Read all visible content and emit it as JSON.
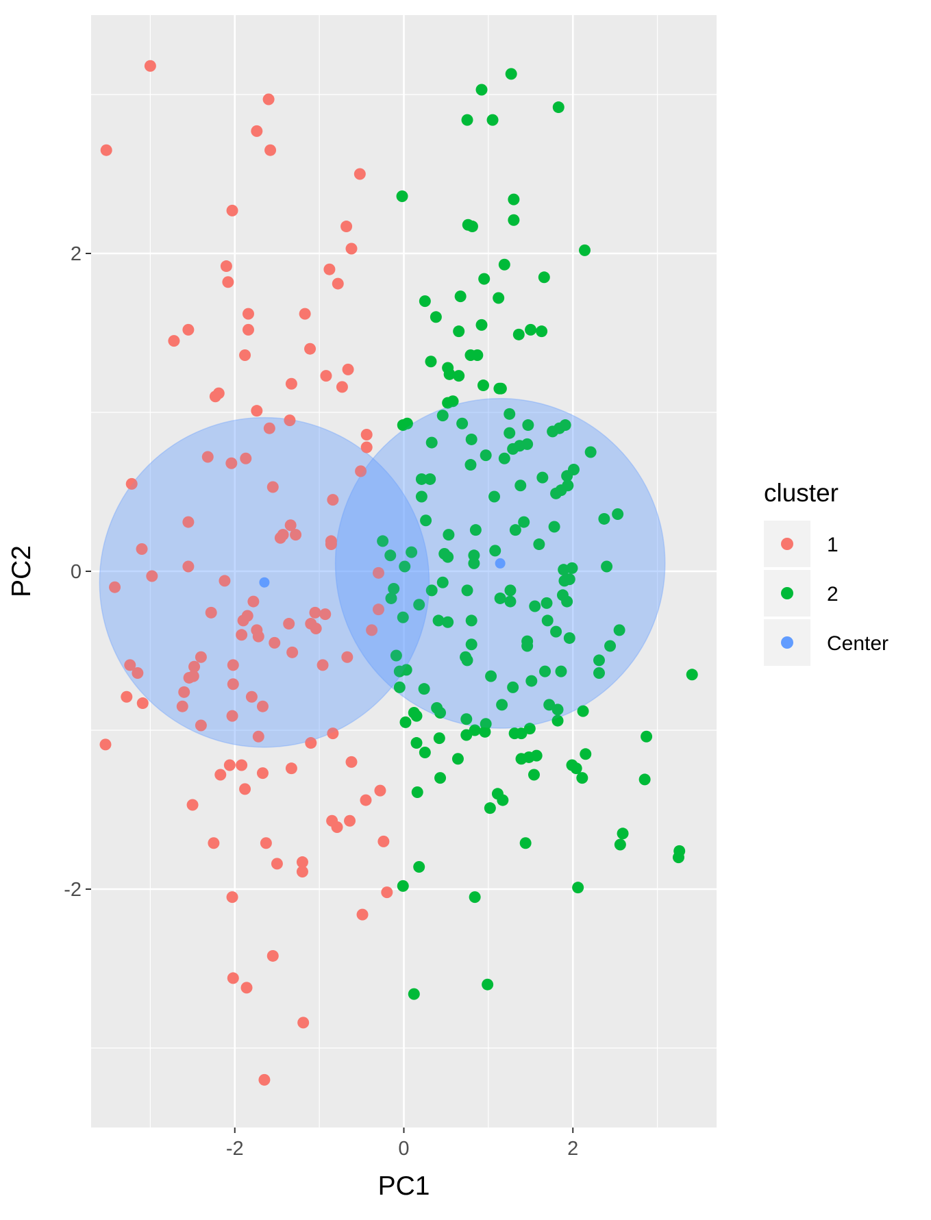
{
  "chart_data": {
    "type": "scatter",
    "title": "",
    "xlabel": "PC1",
    "ylabel": "PC2",
    "xlim": [
      -3.7,
      3.7
    ],
    "ylim": [
      -3.5,
      3.5
    ],
    "x_ticks": [
      -2,
      0,
      2
    ],
    "x_tick_labels": [
      "-2",
      "0",
      "2"
    ],
    "y_ticks": [
      -2,
      0,
      2
    ],
    "y_tick_labels": [
      "-2",
      "0",
      "2"
    ],
    "grid": true,
    "legend": {
      "title": "cluster",
      "position": "right",
      "entries": [
        {
          "label": "1",
          "color": "#F8766D"
        },
        {
          "label": "2",
          "color": "#00BA38"
        },
        {
          "label": "Center",
          "color": "#619CFF"
        }
      ]
    },
    "series": [
      {
        "name": "1",
        "color": "#F8766D",
        "points": [
          [
            -3.0,
            3.18
          ],
          [
            -1.6,
            2.97
          ],
          [
            -3.52,
            2.65
          ],
          [
            -1.74,
            2.77
          ],
          [
            -1.58,
            2.65
          ],
          [
            -0.52,
            2.5
          ],
          [
            -2.03,
            2.27
          ],
          [
            -0.68,
            2.17
          ],
          [
            -0.62,
            2.03
          ],
          [
            -2.1,
            1.92
          ],
          [
            -2.08,
            1.82
          ],
          [
            -0.88,
            1.9
          ],
          [
            -0.78,
            1.81
          ],
          [
            -1.84,
            1.62
          ],
          [
            -1.84,
            1.52
          ],
          [
            -1.17,
            1.62
          ],
          [
            -2.72,
            1.45
          ],
          [
            -2.55,
            1.52
          ],
          [
            -1.11,
            1.4
          ],
          [
            -1.88,
            1.36
          ],
          [
            -0.92,
            1.23
          ],
          [
            -0.66,
            1.27
          ],
          [
            -1.33,
            1.18
          ],
          [
            -0.73,
            1.16
          ],
          [
            -2.19,
            1.12
          ],
          [
            -2.23,
            1.1
          ],
          [
            -1.74,
            1.01
          ],
          [
            -1.35,
            0.95
          ],
          [
            -1.59,
            0.9
          ],
          [
            -0.44,
            0.86
          ],
          [
            -0.44,
            0.78
          ],
          [
            -2.32,
            0.72
          ],
          [
            -1.87,
            0.71
          ],
          [
            -2.04,
            0.68
          ],
          [
            -0.51,
            0.63
          ],
          [
            -3.22,
            0.55
          ],
          [
            -1.55,
            0.53
          ],
          [
            -0.84,
            0.45
          ],
          [
            -2.55,
            0.31
          ],
          [
            -1.34,
            0.29
          ],
          [
            -1.43,
            0.23
          ],
          [
            -1.28,
            0.23
          ],
          [
            -1.46,
            0.21
          ],
          [
            -3.1,
            0.14
          ],
          [
            -0.86,
            0.19
          ],
          [
            -0.86,
            0.17
          ],
          [
            -2.55,
            0.03
          ],
          [
            -2.98,
            -0.03
          ],
          [
            -3.42,
            -0.1
          ],
          [
            -2.12,
            -0.06
          ],
          [
            -0.3,
            -0.01
          ],
          [
            -1.78,
            -0.19
          ],
          [
            -2.28,
            -0.26
          ],
          [
            -1.05,
            -0.26
          ],
          [
            -0.93,
            -0.27
          ],
          [
            -0.3,
            -0.24
          ],
          [
            -1.85,
            -0.28
          ],
          [
            -1.9,
            -0.31
          ],
          [
            -1.36,
            -0.33
          ],
          [
            -1.74,
            -0.37
          ],
          [
            -1.1,
            -0.33
          ],
          [
            -1.04,
            -0.36
          ],
          [
            -1.92,
            -0.4
          ],
          [
            -1.72,
            -0.41
          ],
          [
            -1.53,
            -0.45
          ],
          [
            -0.38,
            -0.37
          ],
          [
            -1.32,
            -0.51
          ],
          [
            -2.4,
            -0.54
          ],
          [
            -0.67,
            -0.54
          ],
          [
            -0.96,
            -0.59
          ],
          [
            -3.24,
            -0.59
          ],
          [
            -2.02,
            -0.59
          ],
          [
            -2.48,
            -0.6
          ],
          [
            -3.15,
            -0.64
          ],
          [
            -2.54,
            -0.67
          ],
          [
            -2.49,
            -0.66
          ],
          [
            -2.02,
            -0.71
          ],
          [
            -2.6,
            -0.76
          ],
          [
            -3.28,
            -0.79
          ],
          [
            -1.8,
            -0.79
          ],
          [
            -3.09,
            -0.83
          ],
          [
            -2.62,
            -0.85
          ],
          [
            -1.67,
            -0.85
          ],
          [
            -2.03,
            -0.91
          ],
          [
            -2.4,
            -0.97
          ],
          [
            -0.84,
            -1.02
          ],
          [
            -1.72,
            -1.04
          ],
          [
            -1.1,
            -1.08
          ],
          [
            -3.53,
            -1.09
          ],
          [
            -0.62,
            -1.2
          ],
          [
            -2.06,
            -1.22
          ],
          [
            -1.92,
            -1.22
          ],
          [
            -1.33,
            -1.24
          ],
          [
            -1.67,
            -1.27
          ],
          [
            -2.17,
            -1.28
          ],
          [
            -1.88,
            -1.37
          ],
          [
            -0.28,
            -1.38
          ],
          [
            -0.45,
            -1.44
          ],
          [
            -2.5,
            -1.47
          ],
          [
            -0.85,
            -1.57
          ],
          [
            -0.64,
            -1.57
          ],
          [
            -0.79,
            -1.61
          ],
          [
            -0.24,
            -1.7
          ],
          [
            -2.25,
            -1.71
          ],
          [
            -1.63,
            -1.71
          ],
          [
            -1.2,
            -1.83
          ],
          [
            -1.5,
            -1.84
          ],
          [
            -1.2,
            -1.89
          ],
          [
            -0.2,
            -2.02
          ],
          [
            -2.03,
            -2.05
          ],
          [
            -0.49,
            -2.16
          ],
          [
            -1.55,
            -2.42
          ],
          [
            -2.02,
            -2.56
          ],
          [
            -1.86,
            -2.62
          ],
          [
            -1.19,
            -2.84
          ],
          [
            -1.65,
            -3.2
          ]
        ]
      },
      {
        "name": "2",
        "color": "#00BA38",
        "points": [
          [
            1.27,
            3.13
          ],
          [
            0.92,
            3.03
          ],
          [
            1.83,
            2.92
          ],
          [
            0.75,
            2.84
          ],
          [
            1.05,
            2.84
          ],
          [
            -0.02,
            2.36
          ],
          [
            1.3,
            2.34
          ],
          [
            1.3,
            2.21
          ],
          [
            0.76,
            2.18
          ],
          [
            0.81,
            2.17
          ],
          [
            2.14,
            2.02
          ],
          [
            1.19,
            1.93
          ],
          [
            0.95,
            1.84
          ],
          [
            1.66,
            1.85
          ],
          [
            1.12,
            1.72
          ],
          [
            0.67,
            1.73
          ],
          [
            0.25,
            1.7
          ],
          [
            0.38,
            1.6
          ],
          [
            0.92,
            1.55
          ],
          [
            1.5,
            1.52
          ],
          [
            1.63,
            1.51
          ],
          [
            0.65,
            1.51
          ],
          [
            1.36,
            1.49
          ],
          [
            0.79,
            1.36
          ],
          [
            0.87,
            1.36
          ],
          [
            0.32,
            1.32
          ],
          [
            0.52,
            1.28
          ],
          [
            0.54,
            1.24
          ],
          [
            0.65,
            1.23
          ],
          [
            0.94,
            1.17
          ],
          [
            1.13,
            1.15
          ],
          [
            1.15,
            1.15
          ],
          [
            0.52,
            1.06
          ],
          [
            0.58,
            1.07
          ],
          [
            1.25,
            0.99
          ],
          [
            0.46,
            0.98
          ],
          [
            -0.01,
            0.92
          ],
          [
            0.04,
            0.93
          ],
          [
            0.69,
            0.93
          ],
          [
            1.47,
            0.92
          ],
          [
            1.76,
            0.88
          ],
          [
            1.84,
            0.9
          ],
          [
            1.91,
            0.92
          ],
          [
            1.25,
            0.87
          ],
          [
            0.8,
            0.83
          ],
          [
            0.33,
            0.81
          ],
          [
            1.29,
            0.77
          ],
          [
            1.37,
            0.79
          ],
          [
            1.46,
            0.8
          ],
          [
            2.21,
            0.75
          ],
          [
            1.19,
            0.71
          ],
          [
            0.97,
            0.73
          ],
          [
            0.79,
            0.67
          ],
          [
            2.01,
            0.64
          ],
          [
            1.93,
            0.6
          ],
          [
            1.64,
            0.59
          ],
          [
            0.21,
            0.58
          ],
          [
            0.31,
            0.58
          ],
          [
            1.38,
            0.54
          ],
          [
            1.94,
            0.54
          ],
          [
            1.86,
            0.51
          ],
          [
            1.8,
            0.49
          ],
          [
            0.21,
            0.47
          ],
          [
            1.07,
            0.47
          ],
          [
            2.53,
            0.36
          ],
          [
            2.37,
            0.33
          ],
          [
            0.26,
            0.32
          ],
          [
            1.42,
            0.31
          ],
          [
            0.85,
            0.26
          ],
          [
            1.78,
            0.28
          ],
          [
            1.32,
            0.26
          ],
          [
            0.53,
            0.23
          ],
          [
            -0.25,
            0.19
          ],
          [
            1.6,
            0.17
          ],
          [
            0.52,
            0.09
          ],
          [
            0.09,
            0.12
          ],
          [
            0.83,
            0.1
          ],
          [
            1.08,
            0.13
          ],
          [
            -0.16,
            0.1
          ],
          [
            0.48,
            0.11
          ],
          [
            0.83,
            0.05
          ],
          [
            0.01,
            0.03
          ],
          [
            1.89,
            0.01
          ],
          [
            1.99,
            0.02
          ],
          [
            2.4,
            0.03
          ],
          [
            1.9,
            -0.06
          ],
          [
            1.96,
            -0.05
          ],
          [
            0.46,
            -0.07
          ],
          [
            -0.12,
            -0.11
          ],
          [
            1.26,
            -0.12
          ],
          [
            0.75,
            -0.12
          ],
          [
            0.33,
            -0.12
          ],
          [
            1.88,
            -0.15
          ],
          [
            1.14,
            -0.17
          ],
          [
            1.26,
            -0.19
          ],
          [
            1.93,
            -0.19
          ],
          [
            -0.15,
            -0.17
          ],
          [
            0.18,
            -0.21
          ],
          [
            1.69,
            -0.2
          ],
          [
            1.55,
            -0.22
          ],
          [
            -0.01,
            -0.29
          ],
          [
            0.41,
            -0.31
          ],
          [
            0.8,
            -0.31
          ],
          [
            1.7,
            -0.31
          ],
          [
            0.52,
            -0.32
          ],
          [
            2.55,
            -0.37
          ],
          [
            1.8,
            -0.38
          ],
          [
            1.96,
            -0.42
          ],
          [
            1.46,
            -0.44
          ],
          [
            1.46,
            -0.47
          ],
          [
            0.8,
            -0.46
          ],
          [
            2.44,
            -0.47
          ],
          [
            -0.09,
            -0.53
          ],
          [
            0.73,
            -0.54
          ],
          [
            2.31,
            -0.56
          ],
          [
            0.75,
            -0.56
          ],
          [
            -0.05,
            -0.63
          ],
          [
            0.03,
            -0.62
          ],
          [
            2.31,
            -0.64
          ],
          [
            1.67,
            -0.63
          ],
          [
            1.86,
            -0.63
          ],
          [
            1.03,
            -0.66
          ],
          [
            3.41,
            -0.65
          ],
          [
            1.51,
            -0.69
          ],
          [
            -0.05,
            -0.73
          ],
          [
            1.29,
            -0.73
          ],
          [
            1.16,
            -0.84
          ],
          [
            1.72,
            -0.84
          ],
          [
            0.24,
            -0.74
          ],
          [
            1.82,
            -0.87
          ],
          [
            0.39,
            -0.86
          ],
          [
            2.12,
            -0.88
          ],
          [
            0.43,
            -0.89
          ],
          [
            0.12,
            -0.89
          ],
          [
            0.15,
            -0.91
          ],
          [
            0.74,
            -0.93
          ],
          [
            1.82,
            -0.94
          ],
          [
            0.02,
            -0.95
          ],
          [
            0.97,
            -0.96
          ],
          [
            1.49,
            -0.99
          ],
          [
            0.84,
            -1.0
          ],
          [
            0.96,
            -1.01
          ],
          [
            1.31,
            -1.02
          ],
          [
            1.39,
            -1.02
          ],
          [
            2.87,
            -1.04
          ],
          [
            0.74,
            -1.03
          ],
          [
            0.42,
            -1.05
          ],
          [
            0.15,
            -1.08
          ],
          [
            0.25,
            -1.14
          ],
          [
            2.15,
            -1.15
          ],
          [
            1.48,
            -1.17
          ],
          [
            1.57,
            -1.16
          ],
          [
            1.39,
            -1.18
          ],
          [
            0.64,
            -1.18
          ],
          [
            1.99,
            -1.22
          ],
          [
            2.04,
            -1.24
          ],
          [
            1.54,
            -1.28
          ],
          [
            2.11,
            -1.3
          ],
          [
            0.43,
            -1.3
          ],
          [
            2.85,
            -1.31
          ],
          [
            0.16,
            -1.39
          ],
          [
            1.11,
            -1.4
          ],
          [
            1.17,
            -1.44
          ],
          [
            1.02,
            -1.49
          ],
          [
            2.59,
            -1.65
          ],
          [
            2.56,
            -1.72
          ],
          [
            1.44,
            -1.71
          ],
          [
            3.26,
            -1.76
          ],
          [
            3.25,
            -1.8
          ],
          [
            0.18,
            -1.86
          ],
          [
            -0.01,
            -1.98
          ],
          [
            2.06,
            -1.99
          ],
          [
            0.84,
            -2.05
          ],
          [
            0.99,
            -2.6
          ],
          [
            0.12,
            -2.66
          ]
        ]
      },
      {
        "name": "Center",
        "color": "#619CFF",
        "points": [
          [
            -1.65,
            -0.07
          ],
          [
            1.14,
            0.05
          ]
        ]
      }
    ],
    "circles": [
      {
        "center": [
          -1.65,
          -0.07
        ],
        "radius": 1.95,
        "color": "#619CFF"
      },
      {
        "center": [
          1.14,
          0.05
        ],
        "radius": 1.95,
        "color": "#619CFF"
      }
    ]
  }
}
